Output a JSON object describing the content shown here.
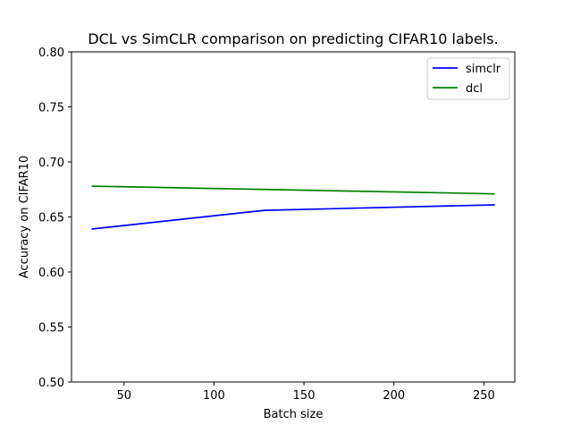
{
  "chart_data": {
    "type": "line",
    "title": "DCL vs SimCLR comparison on predicting CIFAR10 labels.",
    "xlabel": "Batch size",
    "ylabel": "Accuracy on CIFAR10",
    "xlim": [
      20.8,
      267.2
    ],
    "ylim": [
      0.5,
      0.8
    ],
    "xticks": [
      50,
      100,
      150,
      200,
      250
    ],
    "xtick_labels": [
      "50",
      "100",
      "150",
      "200",
      "250"
    ],
    "yticks": [
      0.5,
      0.55,
      0.6,
      0.65,
      0.7,
      0.75,
      0.8
    ],
    "ytick_labels": [
      "0.50",
      "0.55",
      "0.60",
      "0.65",
      "0.70",
      "0.75",
      "0.80"
    ],
    "grid": false,
    "legend_position": "top-right",
    "x": [
      32,
      128,
      256
    ],
    "series": [
      {
        "name": "simclr",
        "color": "#0000ff",
        "values": [
          0.639,
          0.656,
          0.661
        ]
      },
      {
        "name": "dcl",
        "color": "#008000",
        "values": [
          0.678,
          0.675,
          0.671
        ]
      }
    ]
  }
}
